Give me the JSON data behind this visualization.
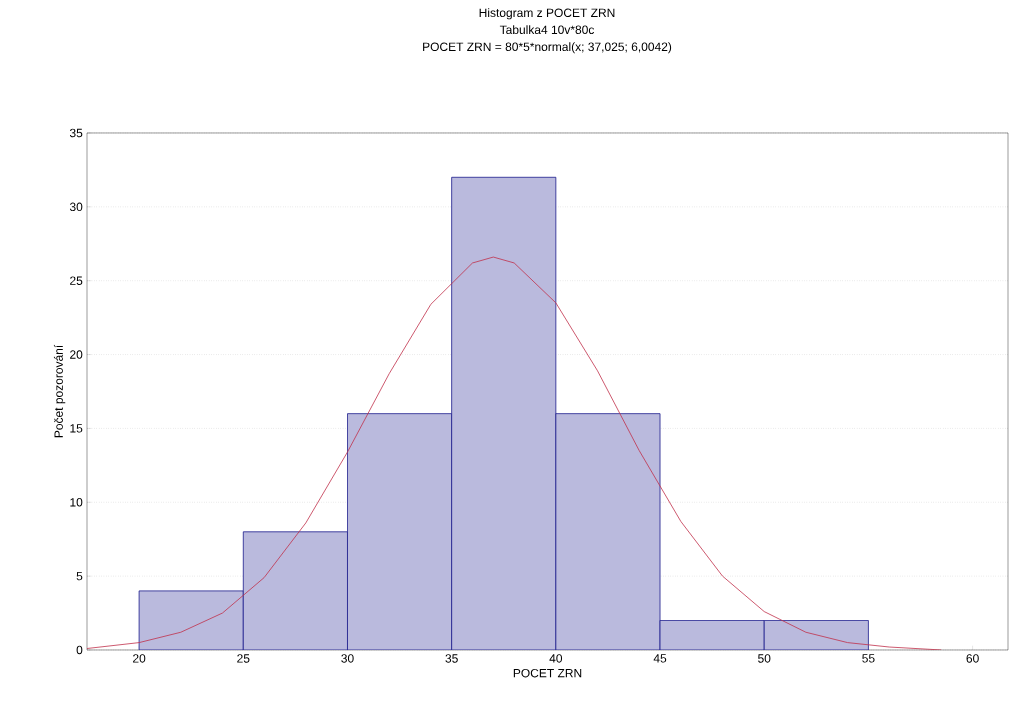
{
  "chart_data": {
    "type": "histogram",
    "title": "Histogram z POCET ZRN",
    "subtitle": "Tabulka4 10v*80c",
    "annotations": [
      "POCET ZRN = 80*5*normal(x; 37,025; 6,0042)"
    ],
    "xlabel": "POCET ZRN",
    "ylabel": "Počet pozorování",
    "series": [
      {
        "color": "#1a1a8c",
        "bins": [
          20,
          25,
          30,
          35,
          40,
          45,
          50,
          55
        ],
        "values": [
          4,
          8,
          16,
          32,
          16,
          2,
          2
        ]
      },
      {
        "type": "line",
        "color": "#c0304a",
        "x": [
          17.5,
          20,
          22,
          24,
          26,
          28,
          30,
          32,
          34,
          36,
          37,
          38,
          40,
          42,
          44,
          46,
          48,
          50,
          52,
          54,
          56,
          58.5
        ],
        "values": [
          0.1,
          0.5,
          1.2,
          2.5,
          4.9,
          8.6,
          13.4,
          18.7,
          23.4,
          26.2,
          26.6,
          26.2,
          23.5,
          18.9,
          13.5,
          8.7,
          5.0,
          2.6,
          1.2,
          0.5,
          0.2,
          0.0
        ]
      }
    ],
    "xlim": [
      17.5,
      61.7
    ],
    "ylim": [
      0,
      35
    ],
    "xticks": [
      20,
      25,
      30,
      35,
      40,
      45,
      50,
      55,
      60
    ],
    "yticks": [
      0,
      5,
      10,
      15,
      20,
      25,
      30,
      35
    ],
    "grid": "y",
    "marker": "none",
    "line_style": "solid"
  }
}
